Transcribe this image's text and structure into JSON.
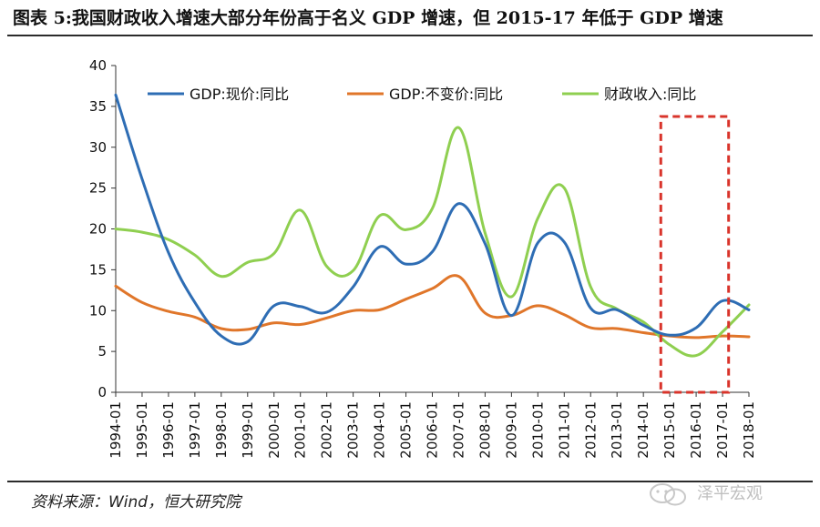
{
  "title": "图表 5:我国财政收入增速大部分年份高于名义 GDP 增速，但 2015-17 年低于 GDP 增速",
  "source": "资料来源：Wind，恒大研究院",
  "watermark": "泽平宏观",
  "colors": {
    "gdp_nominal": "#2e6db4",
    "gdp_real": "#e0762a",
    "fiscal": "#8fcf50",
    "highlight": "#d9342b"
  },
  "chart_data": {
    "type": "line",
    "categories": [
      "1994-01",
      "1995-01",
      "1996-01",
      "1997-01",
      "1998-01",
      "1999-01",
      "2000-01",
      "2001-01",
      "2002-01",
      "2003-01",
      "2004-01",
      "2005-01",
      "2006-01",
      "2007-01",
      "2008-01",
      "2009-01",
      "2010-01",
      "2011-01",
      "2012-01",
      "2013-01",
      "2014-01",
      "2015-01",
      "2016-01",
      "2017-01",
      "2018-01"
    ],
    "ylim": [
      0,
      40
    ],
    "yticks": [
      0,
      5,
      10,
      15,
      20,
      25,
      30,
      35,
      40
    ],
    "legend_position": "top",
    "series": [
      {
        "name": "GDP:现价:同比",
        "color": "#2e6db4",
        "values": [
          36.4,
          26.1,
          17.1,
          11.0,
          6.9,
          6.2,
          10.6,
          10.5,
          9.8,
          12.9,
          17.8,
          15.7,
          17.2,
          23.1,
          18.2,
          9.4,
          18.3,
          18.4,
          10.3,
          10.1,
          8.2,
          7.0,
          7.9,
          11.2,
          10.1
        ]
      },
      {
        "name": "GDP:不变价:同比",
        "color": "#e0762a",
        "values": [
          13.0,
          11.0,
          9.9,
          9.2,
          7.8,
          7.7,
          8.5,
          8.3,
          9.1,
          10.0,
          10.1,
          11.4,
          12.7,
          14.2,
          9.7,
          9.4,
          10.6,
          9.5,
          7.9,
          7.8,
          7.3,
          6.9,
          6.7,
          6.9,
          6.8
        ]
      },
      {
        "name": "财政收入:同比",
        "color": "#8fcf50",
        "values": [
          20.0,
          19.6,
          18.7,
          16.8,
          14.2,
          15.9,
          17.0,
          22.3,
          15.4,
          14.9,
          21.6,
          19.9,
          22.5,
          32.4,
          19.5,
          11.7,
          21.3,
          25.0,
          12.9,
          10.2,
          8.6,
          5.8,
          4.5,
          7.4,
          10.7
        ]
      }
    ],
    "highlight": {
      "from": "2015-01",
      "to": "2017-01"
    }
  }
}
